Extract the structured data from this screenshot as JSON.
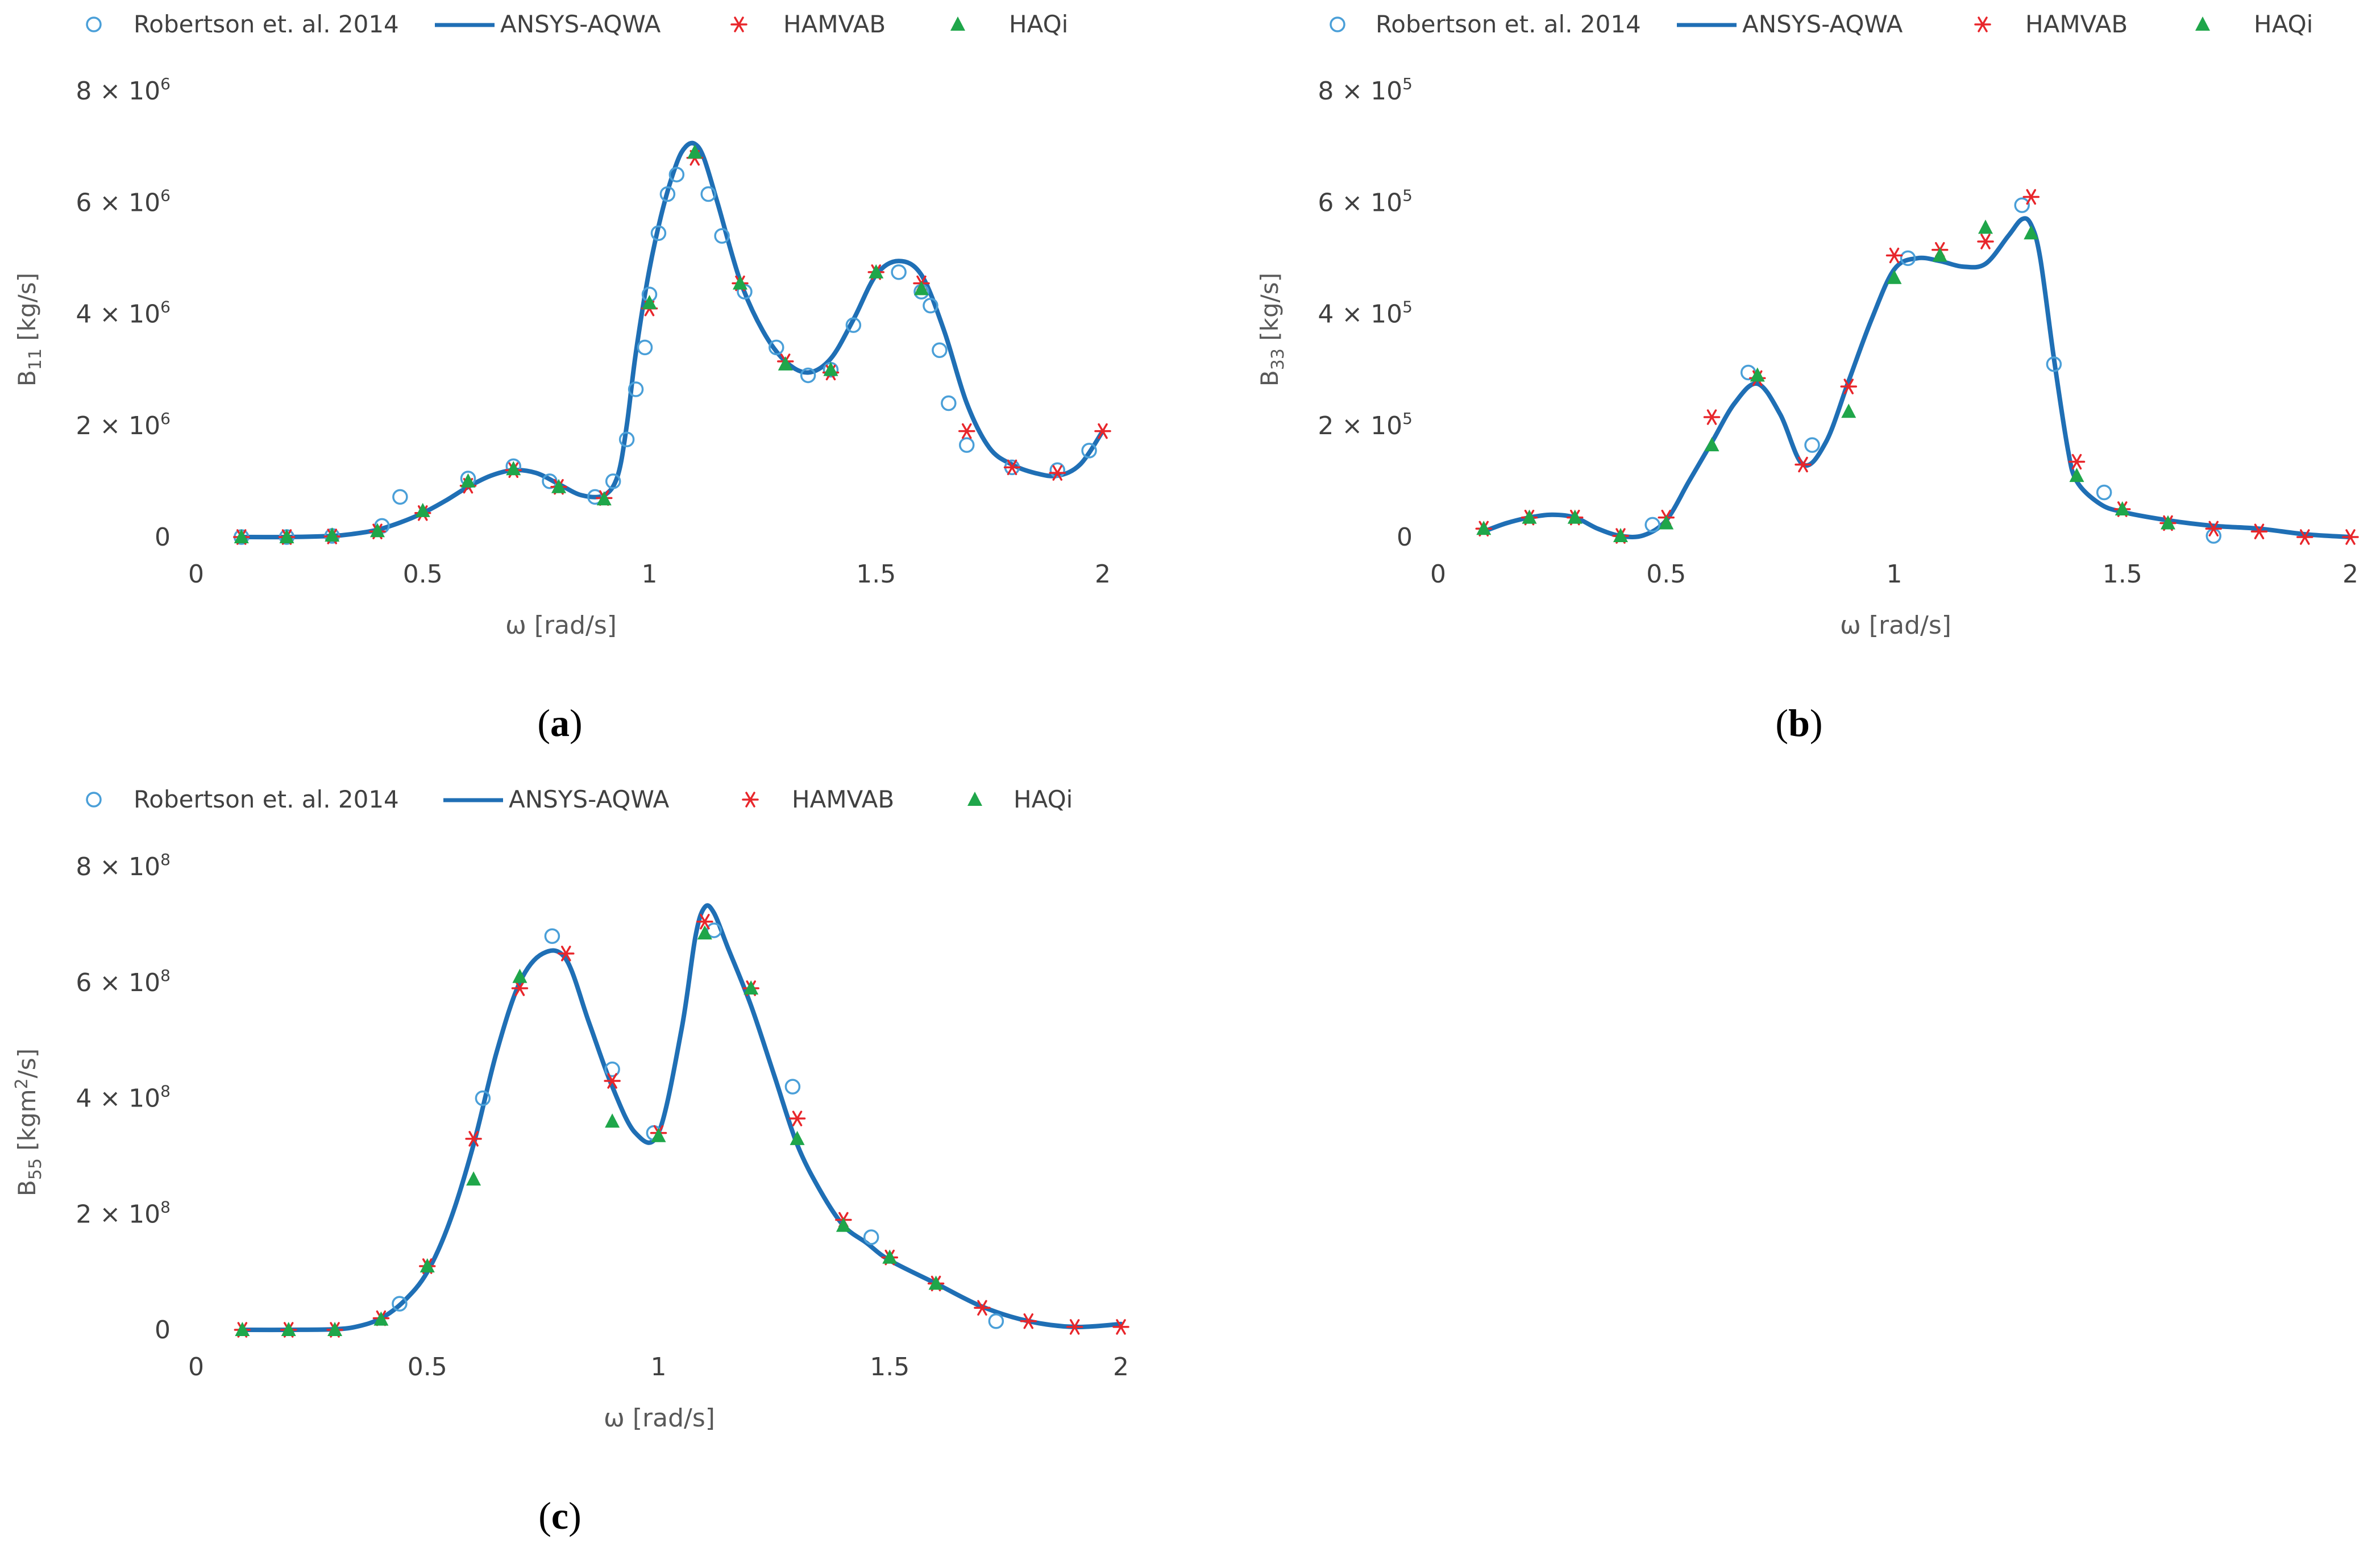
{
  "figure": {
    "legend_labels": [
      "Robertson et. al. 2014",
      "ANSYS-AQWA",
      "HAMVAB",
      "HAQi"
    ],
    "colors": {
      "robertson": "#4a9fd8",
      "ansys": "#1f6fb5",
      "hamvab": "#e8262b",
      "haqi": "#1fa64a",
      "text": "#404040"
    }
  },
  "chart_data": [
    {
      "id": "a",
      "type": "line",
      "caption_open": "(",
      "caption_letter": "a",
      "caption_close": ")",
      "xlabel": "ω [rad/s]",
      "ylabel_main": "B",
      "ylabel_sub": "11",
      "ylabel_rest": " [kg/s]",
      "xlim": [
        0,
        2
      ],
      "ylim": [
        0,
        8000000
      ],
      "x_ticks": [
        0,
        0.5,
        1,
        1.5,
        2
      ],
      "x_tick_labels": [
        "0",
        "0.5",
        "1",
        "1.5",
        "2"
      ],
      "y_ticks": [
        0,
        2000000,
        4000000,
        6000000,
        8000000
      ],
      "y_tick_labels": [
        {
          "base": "0",
          "exp": ""
        },
        {
          "base": "2 × 10",
          "exp": "6"
        },
        {
          "base": "4 × 10",
          "exp": "6"
        },
        {
          "base": "6 × 10",
          "exp": "6"
        },
        {
          "base": "8 × 10",
          "exp": "6"
        }
      ],
      "series": [
        {
          "name": "ANSYS-AQWA",
          "style": "line",
          "x": [
            0.1,
            0.2,
            0.3,
            0.35,
            0.4,
            0.45,
            0.5,
            0.55,
            0.6,
            0.65,
            0.7,
            0.75,
            0.8,
            0.85,
            0.9,
            0.93,
            0.95,
            0.97,
            1.0,
            1.03,
            1.06,
            1.08,
            1.1,
            1.12,
            1.15,
            1.2,
            1.25,
            1.3,
            1.35,
            1.4,
            1.45,
            1.5,
            1.55,
            1.6,
            1.65,
            1.7,
            1.75,
            1.8,
            1.85,
            1.9,
            1.95,
            2.0
          ],
          "y": [
            0,
            0,
            20000,
            60000,
            130000,
            260000,
            430000,
            650000,
            900000,
            1100000,
            1200000,
            1150000,
            950000,
            750000,
            750000,
            1100000,
            2000000,
            3300000,
            4800000,
            5900000,
            6700000,
            7000000,
            7050000,
            6800000,
            6000000,
            4600000,
            3700000,
            3150000,
            2950000,
            3200000,
            3900000,
            4700000,
            4950000,
            4700000,
            3700000,
            2400000,
            1600000,
            1300000,
            1150000,
            1100000,
            1300000,
            1900000
          ]
        },
        {
          "name": "Robertson et. al. 2014",
          "style": "circle",
          "x": [
            0.1,
            0.2,
            0.3,
            0.41,
            0.45,
            0.6,
            0.7,
            0.78,
            0.88,
            0.92,
            0.95,
            0.97,
            0.99,
            1.0,
            1.02,
            1.04,
            1.06,
            1.13,
            1.16,
            1.21,
            1.28,
            1.35,
            1.4,
            1.45,
            1.55,
            1.6,
            1.62,
            1.64,
            1.66,
            1.7,
            1.8,
            1.9,
            1.97
          ],
          "y": [
            0,
            0,
            20000,
            200000,
            720000,
            1050000,
            1270000,
            1000000,
            720000,
            1000000,
            1750000,
            2650000,
            3400000,
            4350000,
            5450000,
            6150000,
            6500000,
            6150000,
            5400000,
            4400000,
            3400000,
            2900000,
            3000000,
            3800000,
            4750000,
            4400000,
            4150000,
            3350000,
            2400000,
            1650000,
            1250000,
            1200000,
            1550000
          ]
        },
        {
          "name": "HAMVAB",
          "style": "star",
          "x": [
            0.1,
            0.2,
            0.3,
            0.4,
            0.5,
            0.6,
            0.7,
            0.8,
            0.9,
            1.0,
            1.1,
            1.2,
            1.3,
            1.4,
            1.5,
            1.6,
            1.7,
            1.8,
            1.9,
            2.0
          ],
          "y": [
            0,
            0,
            10000,
            100000,
            430000,
            920000,
            1200000,
            900000,
            700000,
            4100000,
            6800000,
            4550000,
            3150000,
            2950000,
            4750000,
            4550000,
            1900000,
            1250000,
            1150000,
            1900000
          ]
        },
        {
          "name": "HAQi",
          "style": "triangle",
          "x": [
            0.1,
            0.2,
            0.3,
            0.4,
            0.5,
            0.6,
            0.7,
            0.8,
            0.9,
            1.0,
            1.1,
            1.2,
            1.3,
            1.4,
            1.5,
            1.6
          ],
          "y": [
            0,
            0,
            30000,
            110000,
            470000,
            1000000,
            1220000,
            900000,
            680000,
            4200000,
            6900000,
            4550000,
            3100000,
            3000000,
            4750000,
            4450000
          ]
        }
      ]
    },
    {
      "id": "b",
      "type": "line",
      "caption_open": "(",
      "caption_letter": "b",
      "caption_close": ")",
      "xlabel": "ω [rad/s]",
      "ylabel_main": "B",
      "ylabel_sub": "33",
      "ylabel_rest": " [kg/s]",
      "xlim": [
        0,
        2
      ],
      "ylim": [
        0,
        800000
      ],
      "x_ticks": [
        0,
        0.5,
        1,
        1.5,
        2
      ],
      "x_tick_labels": [
        "0",
        "0.5",
        "1",
        "1.5",
        "2"
      ],
      "y_ticks": [
        0,
        200000,
        400000,
        600000,
        800000
      ],
      "y_tick_labels": [
        {
          "base": "0",
          "exp": ""
        },
        {
          "base": "2 × 10",
          "exp": "5"
        },
        {
          "base": "4 × 10",
          "exp": "5"
        },
        {
          "base": "6 × 10",
          "exp": "5"
        },
        {
          "base": "8 × 10",
          "exp": "5"
        }
      ],
      "series": [
        {
          "name": "ANSYS-AQWA",
          "style": "line",
          "x": [
            0.1,
            0.15,
            0.2,
            0.25,
            0.3,
            0.35,
            0.4,
            0.45,
            0.5,
            0.55,
            0.6,
            0.65,
            0.7,
            0.75,
            0.8,
            0.85,
            0.9,
            0.95,
            1.0,
            1.05,
            1.1,
            1.15,
            1.2,
            1.25,
            1.28,
            1.3,
            1.32,
            1.35,
            1.38,
            1.4,
            1.45,
            1.5,
            1.6,
            1.7,
            1.8,
            1.9,
            2.0
          ],
          "y": [
            10000,
            25000,
            35000,
            40000,
            35000,
            15000,
            2000,
            3000,
            30000,
            100000,
            170000,
            240000,
            275000,
            220000,
            130000,
            170000,
            280000,
            390000,
            480000,
            500000,
            495000,
            485000,
            490000,
            540000,
            570000,
            560000,
            500000,
            320000,
            160000,
            100000,
            60000,
            45000,
            30000,
            20000,
            15000,
            5000,
            0
          ]
        },
        {
          "name": "Robertson et. al. 2014",
          "style": "circle",
          "x": [
            0.47,
            0.68,
            0.82,
            1.03,
            1.28,
            1.35,
            1.46,
            1.7
          ],
          "y": [
            22000,
            295000,
            165000,
            500000,
            595000,
            310000,
            80000,
            2000
          ]
        },
        {
          "name": "HAMVAB",
          "style": "star",
          "x": [
            0.1,
            0.2,
            0.3,
            0.4,
            0.5,
            0.6,
            0.7,
            0.8,
            0.9,
            1.0,
            1.1,
            1.2,
            1.3,
            1.4,
            1.5,
            1.6,
            1.7,
            1.8,
            1.9,
            2.0
          ],
          "y": [
            15000,
            35000,
            35000,
            2000,
            35000,
            215000,
            285000,
            130000,
            270000,
            505000,
            515000,
            530000,
            610000,
            135000,
            50000,
            25000,
            15000,
            10000,
            0,
            0
          ]
        },
        {
          "name": "HAQi",
          "style": "triangle",
          "x": [
            0.1,
            0.2,
            0.3,
            0.4,
            0.5,
            0.6,
            0.7,
            0.9,
            1.0,
            1.1,
            1.2,
            1.3,
            1.4,
            1.5,
            1.6
          ],
          "y": [
            15000,
            35000,
            35000,
            2000,
            25000,
            165000,
            290000,
            225000,
            465000,
            505000,
            555000,
            545000,
            110000,
            50000,
            25000
          ]
        }
      ]
    },
    {
      "id": "c",
      "type": "line",
      "caption_open": "(",
      "caption_letter": "c",
      "caption_close": ")",
      "xlabel": "ω [rad/s]",
      "ylabel_main": "B",
      "ylabel_sub": "55",
      "ylabel_rest": " [kgm",
      "ylabel_sup": "2",
      "ylabel_end": "/s]",
      "xlim": [
        0,
        2
      ],
      "ylim": [
        0,
        800000000
      ],
      "x_ticks": [
        0,
        0.5,
        1,
        1.5,
        2
      ],
      "x_tick_labels": [
        "0",
        "0.5",
        "1",
        "1.5",
        "2"
      ],
      "y_ticks": [
        0,
        200000000,
        400000000,
        600000000,
        800000000
      ],
      "y_tick_labels": [
        {
          "base": "0",
          "exp": ""
        },
        {
          "base": "2 × 10",
          "exp": "8"
        },
        {
          "base": "4 × 10",
          "exp": "8"
        },
        {
          "base": "6 × 10",
          "exp": "8"
        },
        {
          "base": "8 × 10",
          "exp": "8"
        }
      ],
      "series": [
        {
          "name": "ANSYS-AQWA",
          "style": "line",
          "x": [
            0.1,
            0.2,
            0.3,
            0.35,
            0.4,
            0.45,
            0.5,
            0.55,
            0.6,
            0.65,
            0.7,
            0.75,
            0.8,
            0.85,
            0.9,
            0.95,
            1.0,
            1.05,
            1.08,
            1.1,
            1.12,
            1.15,
            1.2,
            1.25,
            1.3,
            1.35,
            1.4,
            1.45,
            1.5,
            1.6,
            1.7,
            1.8,
            1.9,
            2.0
          ],
          "y": [
            0,
            0,
            1000000,
            6000000,
            20000000,
            50000000,
            100000000,
            190000000,
            320000000,
            480000000,
            600000000,
            650000000,
            640000000,
            530000000,
            420000000,
            340000000,
            340000000,
            520000000,
            680000000,
            730000000,
            720000000,
            660000000,
            560000000,
            440000000,
            320000000,
            240000000,
            180000000,
            150000000,
            120000000,
            80000000,
            40000000,
            15000000,
            5000000,
            10000000
          ]
        },
        {
          "name": "Robertson et. al. 2014",
          "style": "circle",
          "x": [
            0.44,
            0.62,
            0.77,
            0.9,
            0.99,
            1.12,
            1.29,
            1.46,
            1.73
          ],
          "y": [
            45000000,
            400000000,
            680000000,
            450000000,
            340000000,
            690000000,
            420000000,
            160000000,
            15000000
          ]
        },
        {
          "name": "HAMVAB",
          "style": "star",
          "x": [
            0.1,
            0.2,
            0.3,
            0.4,
            0.5,
            0.6,
            0.7,
            0.8,
            0.9,
            1.0,
            1.1,
            1.2,
            1.3,
            1.4,
            1.5,
            1.6,
            1.7,
            1.8,
            1.9,
            2.0
          ],
          "y": [
            0,
            0,
            0,
            20000000,
            110000000,
            330000000,
            590000000,
            650000000,
            430000000,
            340000000,
            705000000,
            590000000,
            365000000,
            190000000,
            125000000,
            80000000,
            38000000,
            15000000,
            5000000,
            5000000
          ]
        },
        {
          "name": "HAQi",
          "style": "triangle",
          "x": [
            0.1,
            0.2,
            0.3,
            0.4,
            0.5,
            0.6,
            0.7,
            0.9,
            1.0,
            1.1,
            1.2,
            1.3,
            1.4,
            1.5,
            1.6
          ],
          "y": [
            0,
            0,
            0,
            18000000,
            110000000,
            260000000,
            610000000,
            360000000,
            335000000,
            685000000,
            590000000,
            330000000,
            180000000,
            125000000,
            80000000
          ]
        }
      ]
    }
  ]
}
